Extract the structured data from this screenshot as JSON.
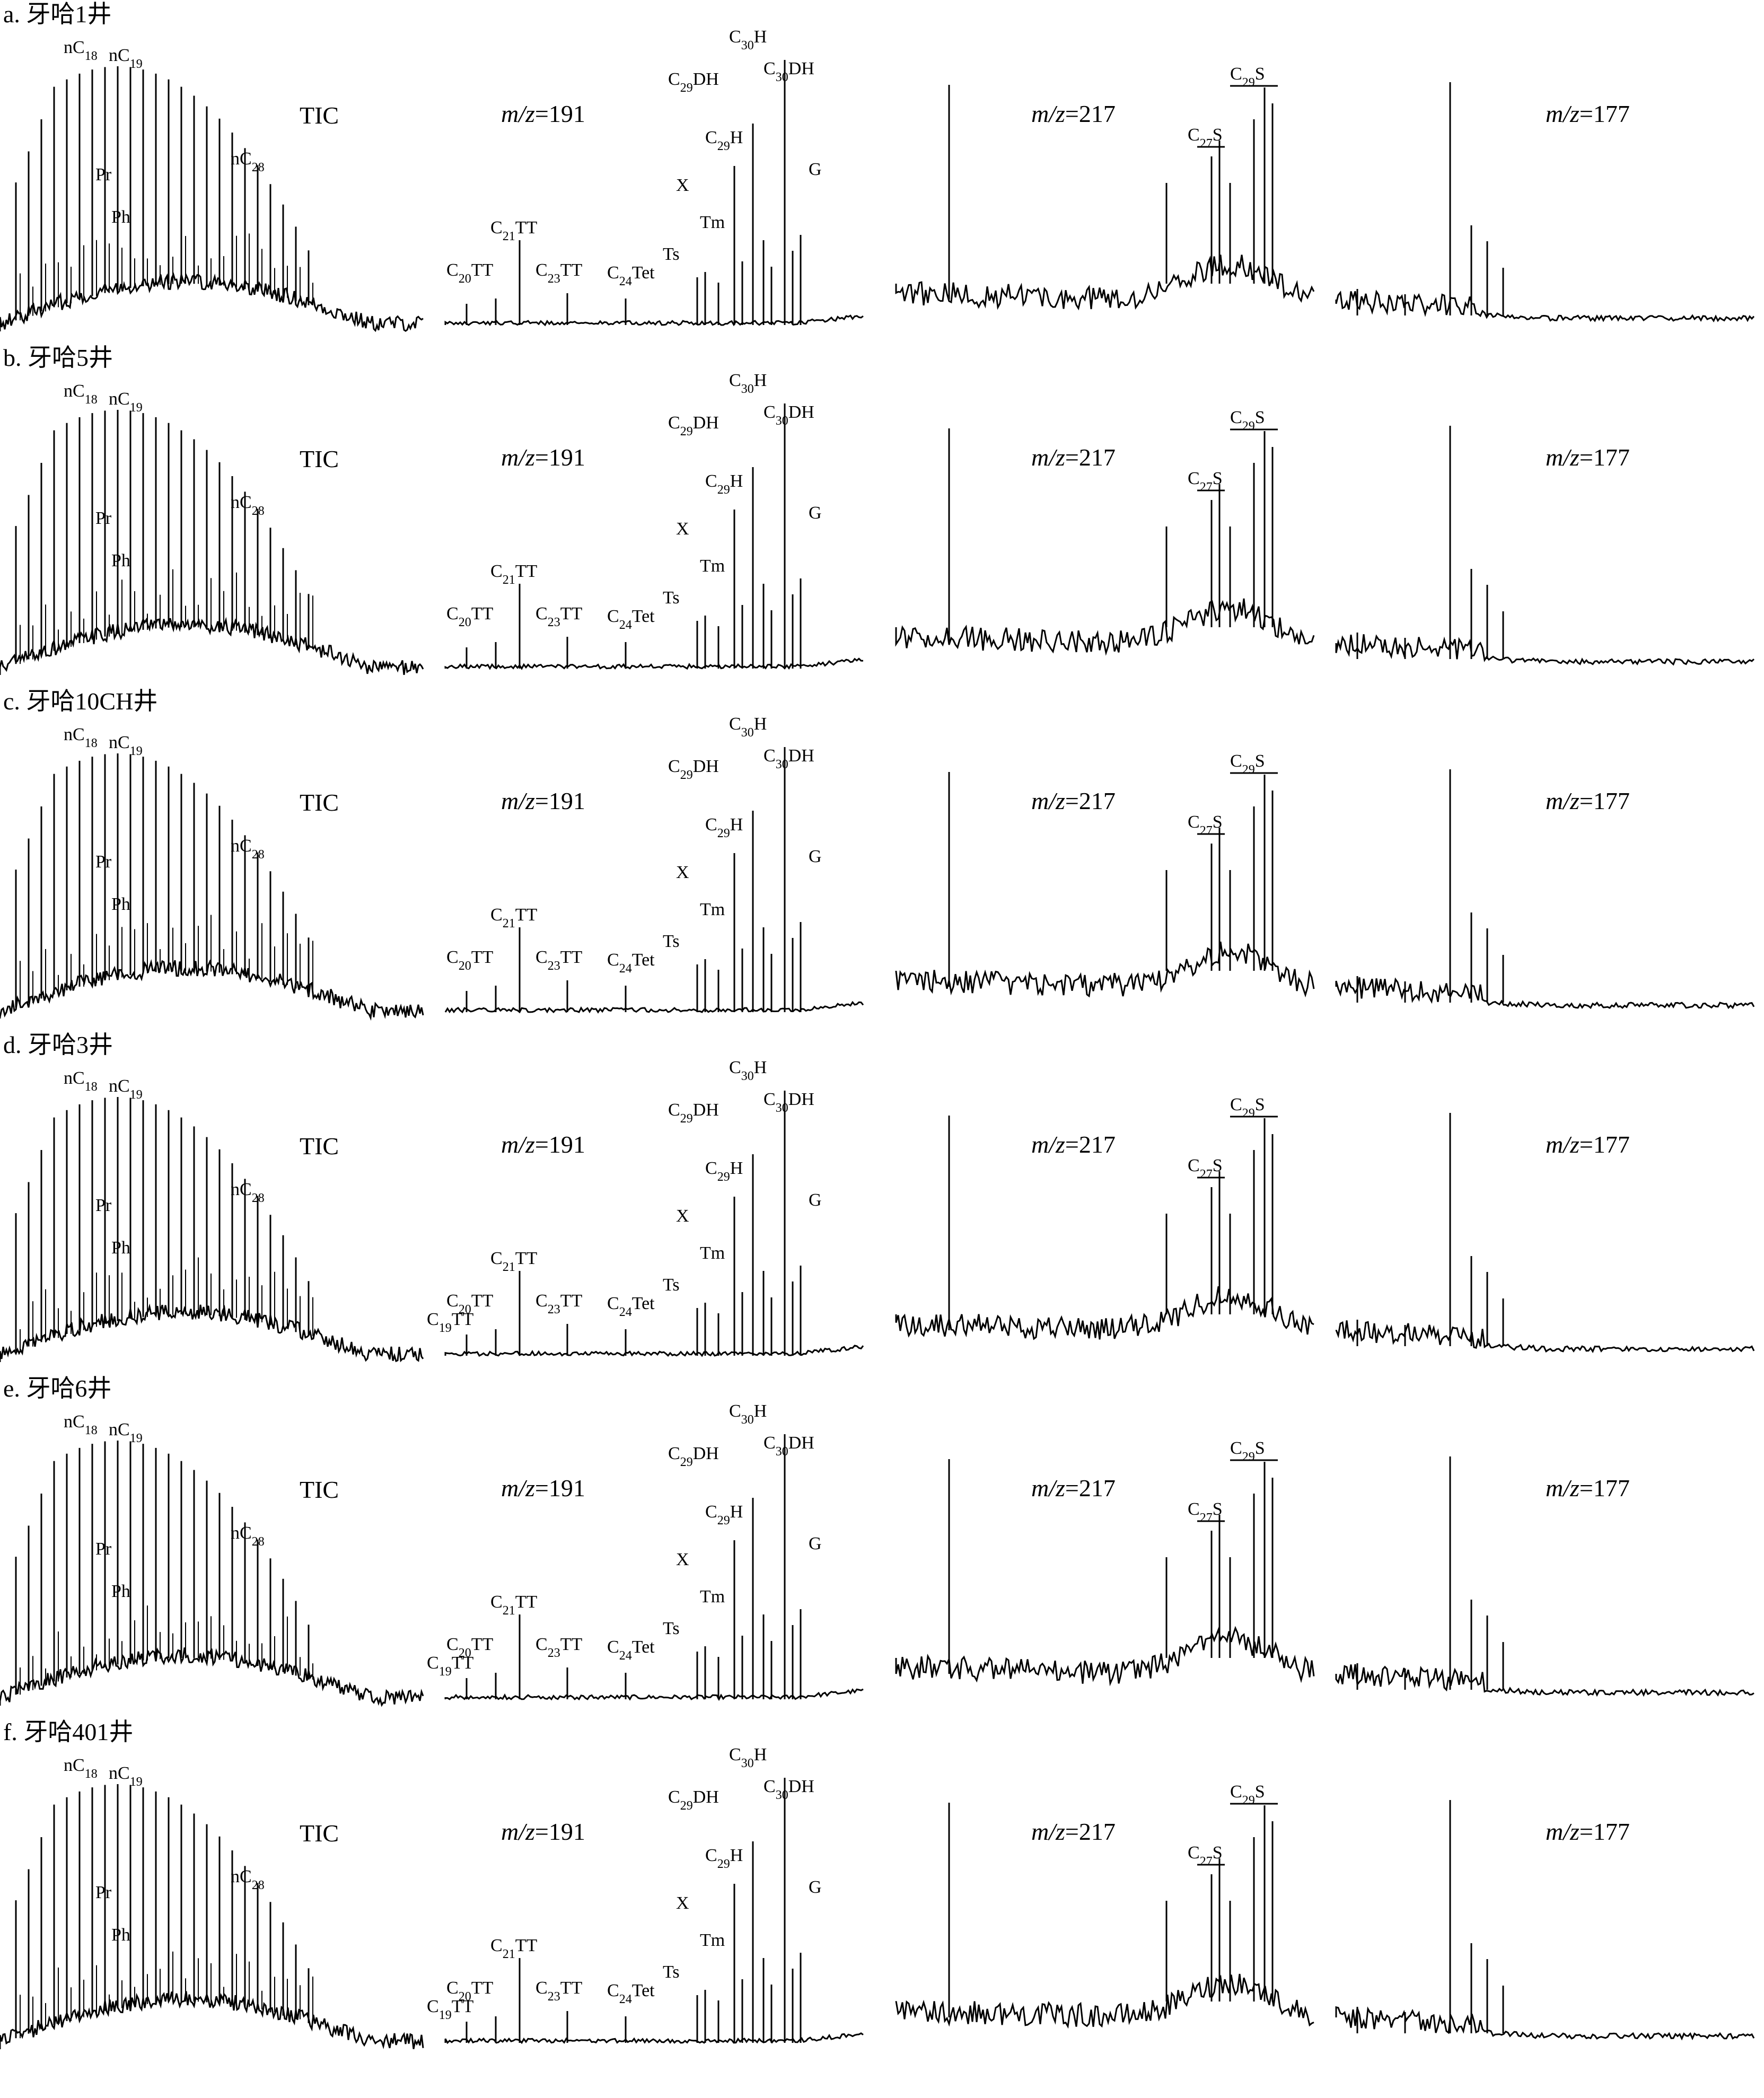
{
  "chart_data": {
    "type": "line",
    "title": "",
    "chromatogram_labels": {
      "tic": "TIC",
      "m191_prefix": "m/z",
      "m191": "=191",
      "m217_prefix": "m/z",
      "m217": "=217",
      "m177_prefix": "m/z",
      "m177": "=177"
    },
    "panels": [
      {
        "label": "a. 牙哈1井",
        "tic_peaks": [
          "nC18",
          "nC19",
          "Pr",
          "Ph",
          "nC28"
        ],
        "m191_peaks": [
          "C20TT",
          "C21TT",
          "C23TT",
          "C24Tet",
          "Ts",
          "Tm",
          "X",
          "C29DH",
          "C29H",
          "C30H",
          "C30DH",
          "G"
        ],
        "m217_peaks": [
          "C27S",
          "C29S"
        ]
      },
      {
        "label": "b. 牙哈5井",
        "tic_peaks": [
          "nC18",
          "nC19",
          "Pr",
          "Ph",
          "nC28"
        ],
        "m191_peaks": [
          "C20TT",
          "C21TT",
          "C23TT",
          "C24Tet",
          "Ts",
          "Tm",
          "X",
          "C29DH",
          "C29H",
          "C30H",
          "C30DH",
          "G"
        ],
        "m217_peaks": [
          "C27S",
          "C29S"
        ]
      },
      {
        "label": "c. 牙哈10CH井",
        "tic_peaks": [
          "nC18",
          "nC19",
          "Pr",
          "Ph",
          "nC28"
        ],
        "m191_peaks": [
          "C20TT",
          "C21TT",
          "C23TT",
          "C24Tet",
          "Ts",
          "Tm",
          "X",
          "C29DH",
          "C29H",
          "C30H",
          "C30DH",
          "G"
        ],
        "m217_peaks": [
          "C27S",
          "C29S"
        ]
      },
      {
        "label": "d. 牙哈3井",
        "tic_peaks": [
          "nC18",
          "nC19",
          "Pr",
          "Ph",
          "nC28"
        ],
        "m191_peaks": [
          "C19TT",
          "C20TT",
          "C21TT",
          "C23TT",
          "C24Tet",
          "Ts",
          "Tm",
          "X",
          "C29DH",
          "C29H",
          "C30H",
          "C30DH",
          "G"
        ],
        "m217_peaks": [
          "C27S",
          "C29S"
        ]
      },
      {
        "label": "e. 牙哈6井",
        "tic_peaks": [
          "nC18",
          "nC19",
          "Pr",
          "Ph",
          "nC28"
        ],
        "m191_peaks": [
          "C19TT",
          "C20TT",
          "C21TT",
          "C23TT",
          "C24Tet",
          "Ts",
          "Tm",
          "X",
          "C29DH",
          "C29H",
          "C30H",
          "C30DH",
          "G"
        ],
        "m217_peaks": [
          "C27S",
          "C29S"
        ]
      },
      {
        "label": "f. 牙哈401井",
        "tic_peaks": [
          "nC18",
          "nC19",
          "Pr",
          "Ph",
          "nC28"
        ],
        "m191_peaks": [
          "C19TT",
          "C20TT",
          "C21TT",
          "C23TT",
          "C24Tet",
          "Ts",
          "Tm",
          "X",
          "C29DH",
          "C29H",
          "C30H",
          "C30DH",
          "G"
        ],
        "m217_peaks": [
          "C27S",
          "C29S"
        ]
      }
    ],
    "axes": "none",
    "grid": false,
    "legend": "none"
  }
}
